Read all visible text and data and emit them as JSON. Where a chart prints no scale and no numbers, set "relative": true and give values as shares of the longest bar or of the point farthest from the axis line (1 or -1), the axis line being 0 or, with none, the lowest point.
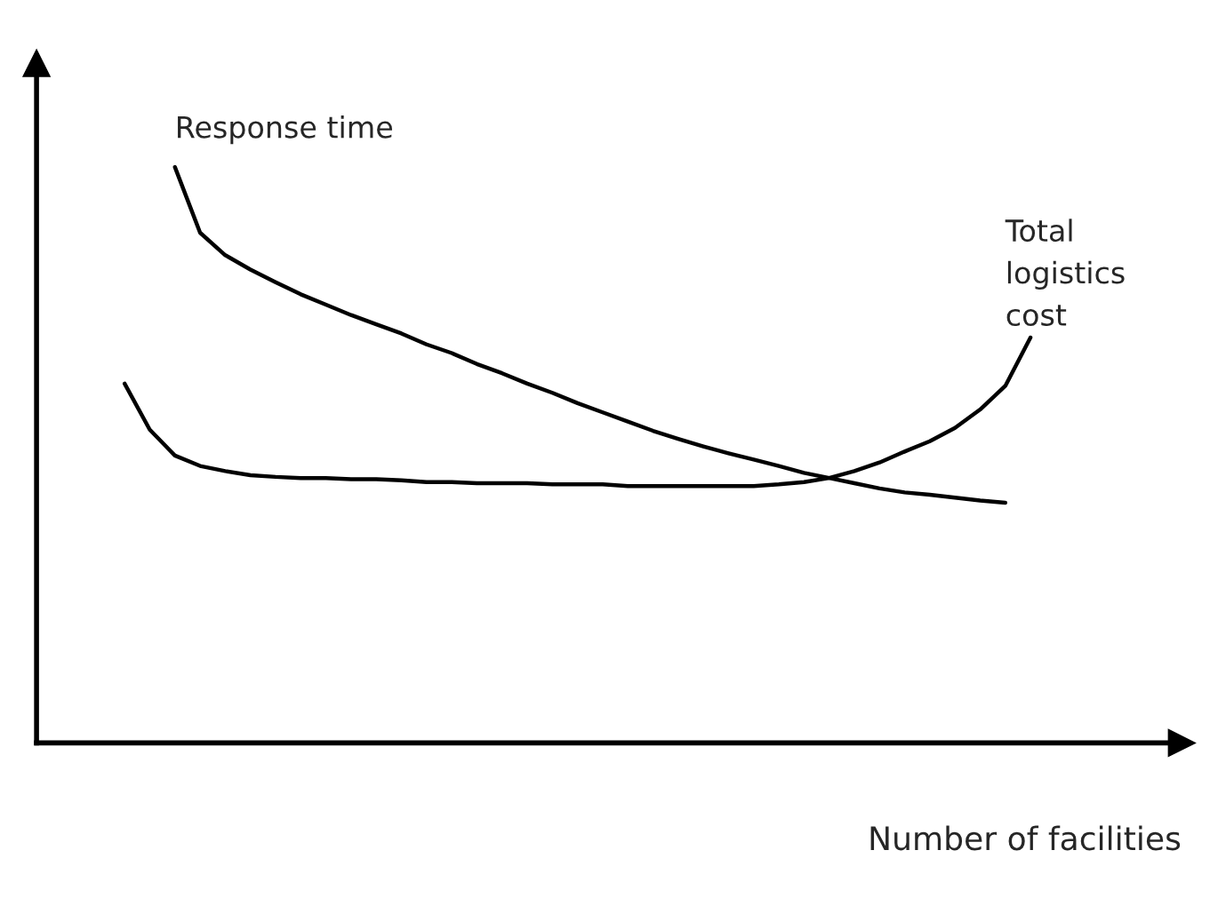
{
  "chart_data": {
    "type": "line",
    "relative": true,
    "xlabel": "Number of facilities",
    "legend": false,
    "marker": "none",
    "line_style": "solid",
    "categories": [
      null,
      null,
      null,
      null,
      null,
      null,
      null,
      null,
      null,
      null,
      null,
      null,
      null,
      null,
      null,
      null,
      null,
      null,
      null,
      null,
      null,
      null,
      null,
      null,
      null,
      null,
      null,
      null,
      null,
      null,
      null,
      null,
      null,
      null,
      null,
      null,
      null
    ],
    "series": [
      {
        "name": "Response time",
        "color": "#000000",
        "values": [
          null,
          null,
          1.0,
          0.886,
          0.847,
          0.822,
          0.8,
          0.779,
          0.761,
          0.743,
          0.727,
          0.711,
          0.692,
          0.677,
          0.658,
          0.642,
          0.624,
          0.608,
          0.59,
          0.574,
          0.558,
          0.542,
          0.528,
          0.515,
          0.503,
          0.492,
          0.481,
          0.469,
          0.46,
          0.451,
          0.442,
          0.435,
          0.431,
          0.426,
          0.421,
          0.417,
          null
        ]
      },
      {
        "name": "Total logistics cost",
        "color": "#000000",
        "values": [
          0.624,
          0.544,
          0.499,
          0.481,
          0.472,
          0.465,
          0.462,
          0.46,
          0.46,
          0.458,
          0.458,
          0.456,
          0.453,
          0.453,
          0.451,
          0.451,
          0.451,
          0.449,
          0.449,
          0.449,
          0.446,
          0.446,
          0.446,
          0.446,
          0.446,
          0.446,
          0.449,
          0.453,
          0.46,
          0.472,
          0.487,
          0.506,
          0.524,
          0.547,
          0.579,
          0.62,
          0.704
        ]
      }
    ]
  }
}
